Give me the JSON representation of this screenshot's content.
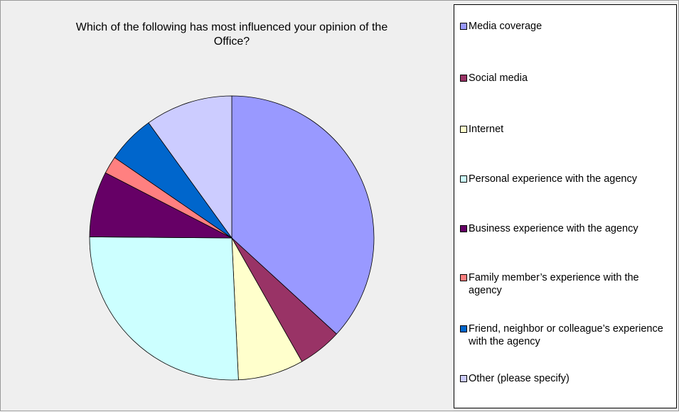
{
  "chart_data": {
    "type": "pie",
    "title": "Which of the following has most influenced your opinion of the Office?",
    "title_lines": [
      "Which of the following has most influenced your opinion of the",
      "Office?"
    ],
    "categories": [
      "Media coverage",
      "Social media",
      "Internet",
      "Personal experience with the agency",
      "Business experience with the agency",
      "Family member’s experience with the agency",
      "Friend, neighbor or colleague’s experience with the agency",
      "Other (please specify)"
    ],
    "values": [
      37,
      5,
      7.5,
      26,
      7.5,
      2,
      5.5,
      10
    ],
    "colors": [
      "#9999ff",
      "#993366",
      "#ffffcc",
      "#ccffff",
      "#660066",
      "#ff8080",
      "#0066cc",
      "#ccccff"
    ],
    "legend_position": "right"
  }
}
